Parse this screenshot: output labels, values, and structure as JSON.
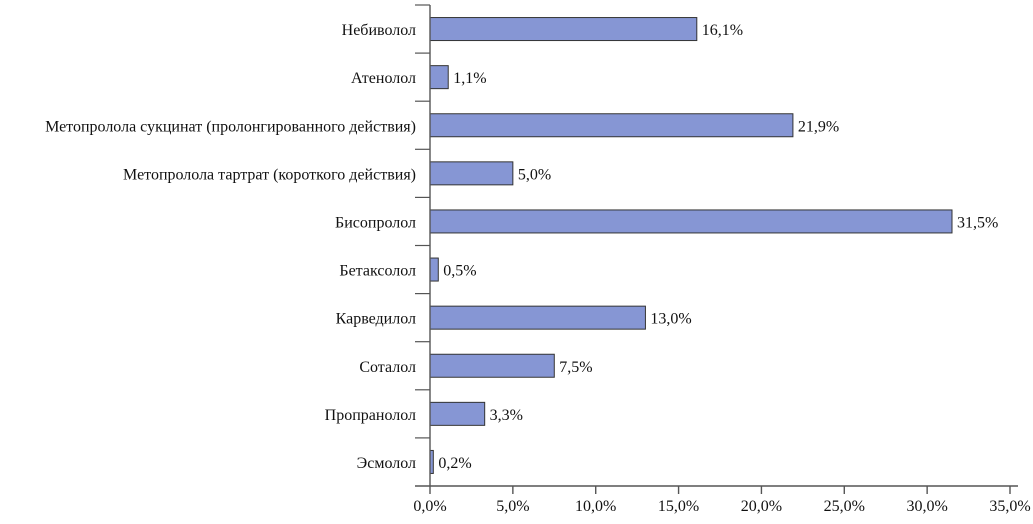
{
  "chart_data": {
    "type": "bar",
    "orientation": "horizontal",
    "categories": [
      "Небиволол",
      "Атенолол",
      "Метопролола сукцинат (пролонгированного действия)",
      "Метопролола тартрат (короткого действия)",
      "Бисопролол",
      "Бетаксолол",
      "Карведилол",
      "Соталол",
      "Пропранолол",
      "Эсмолол"
    ],
    "values": [
      16.1,
      1.1,
      21.9,
      5.0,
      31.5,
      0.5,
      13.0,
      7.5,
      3.3,
      0.2
    ],
    "data_labels": [
      "16,1%",
      "1,1%",
      "21,9%",
      "5,0%",
      "31,5%",
      "0,5%",
      "13,0%",
      "7,5%",
      "3,3%",
      "0,2%"
    ],
    "x_ticks": [
      0,
      5,
      10,
      15,
      20,
      25,
      30,
      35
    ],
    "x_tick_labels": [
      "0,0%",
      "5,0%",
      "10,0%",
      "15,0%",
      "20,0%",
      "25,0%",
      "30,0%",
      "35,0%"
    ],
    "xlim": [
      0,
      35
    ],
    "title": "",
    "xlabel": "",
    "ylabel": "",
    "grid": false,
    "legend": "none",
    "bar_color": "#8696d4"
  }
}
